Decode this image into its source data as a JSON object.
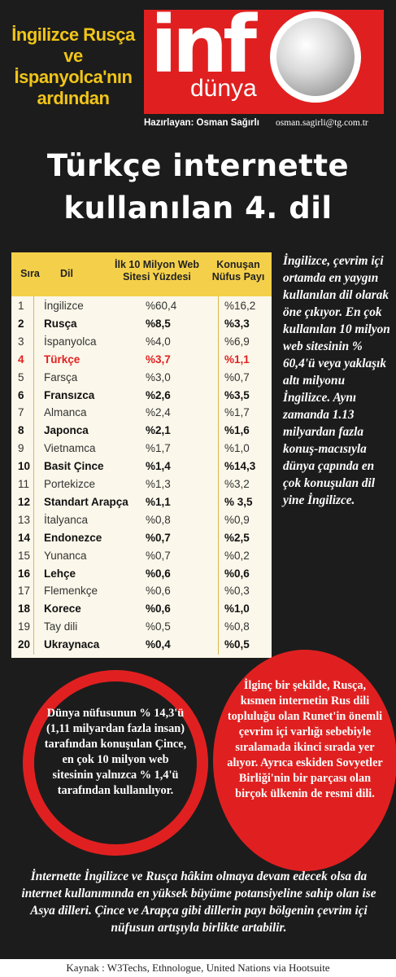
{
  "header": {
    "tagline": "İngilizce Rusça ve İspanyolca'nın ardından",
    "logo_info": "inf",
    "logo_dunya": "dünya",
    "byline": "Hazırlayan: Osman Sağırlı",
    "email": "osman.sagirli@tg.com.tr"
  },
  "headline": {
    "line1": "Türkçe internette",
    "line2": "kullanılan 4. dil"
  },
  "chart_data": {
    "type": "table",
    "columns": [
      "Sıra",
      "Dil",
      "İlk 10 Milyon Web Sitesi Yüzdesi",
      "Konuşan Nüfus Payı"
    ],
    "rows": [
      {
        "rank": "1",
        "lang": "İngilizce",
        "web": "%60,4",
        "pop": "%16,2",
        "style": "normal"
      },
      {
        "rank": "2",
        "lang": "Rusça",
        "web": "%8,5",
        "pop": "%3,3",
        "style": "bold"
      },
      {
        "rank": "3",
        "lang": "İspanyolca",
        "web": "%4,0",
        "pop": "%6,9",
        "style": "normal"
      },
      {
        "rank": "4",
        "lang": "Türkçe",
        "web": "%3,7",
        "pop": "%1,1",
        "style": "highlight"
      },
      {
        "rank": "5",
        "lang": "Farsça",
        "web": "%3,0",
        "pop": "%0,7",
        "style": "normal"
      },
      {
        "rank": "6",
        "lang": "Fransızca",
        "web": "%2,6",
        "pop": "%3,5",
        "style": "bold"
      },
      {
        "rank": "7",
        "lang": "Almanca",
        "web": "%2,4",
        "pop": "%1,7",
        "style": "normal"
      },
      {
        "rank": "8",
        "lang": "Japonca",
        "web": "%2,1",
        "pop": "%1,6",
        "style": "bold"
      },
      {
        "rank": "9",
        "lang": "Vietnamca",
        "web": "%1,7",
        "pop": "%1,0",
        "style": "normal"
      },
      {
        "rank": "10",
        "lang": "Basit Çince",
        "web": "%1,4",
        "pop": "%14,3",
        "style": "bold"
      },
      {
        "rank": "11",
        "lang": "Portekizce",
        "web": "%1,3",
        "pop": "%3,2",
        "style": "normal"
      },
      {
        "rank": "12",
        "lang": "Standart Arapça",
        "web": "%1,1",
        "pop": "% 3,5",
        "style": "bold"
      },
      {
        "rank": "13",
        "lang": "İtalyanca",
        "web": "%0,8",
        "pop": "%0,9",
        "style": "normal"
      },
      {
        "rank": "14",
        "lang": "Endonezce",
        "web": "%0,7",
        "pop": "%2,5",
        "style": "bold"
      },
      {
        "rank": "15",
        "lang": "Yunanca",
        "web": "%0,7",
        "pop": "%0,2",
        "style": "normal"
      },
      {
        "rank": "16",
        "lang": "Lehçe",
        "web": "%0,6",
        "pop": "%0,6",
        "style": "bold"
      },
      {
        "rank": "17",
        "lang": "Flemenkçe",
        "web": "%0,6",
        "pop": "%0,3",
        "style": "normal"
      },
      {
        "rank": "18",
        "lang": "Korece",
        "web": "%0,6",
        "pop": "%1,0",
        "style": "bold"
      },
      {
        "rank": "19",
        "lang": "Tay dili",
        "web": "%0,5",
        "pop": "%0,8",
        "style": "normal"
      },
      {
        "rank": "20",
        "lang": "Ukraynaca",
        "web": "%0,4",
        "pop": "%0,5",
        "style": "bold"
      }
    ]
  },
  "side_text": "İngilizce, çevrim içi ortamda en yaygın kullanılan dil olarak öne çıkıyor. En çok kullanılan 10 milyon web sitesinin % 60,4'ü veya yaklaşık altı milyonu İngilizce. Aynı zamanda 1.13 milyardan fazla konuş-macısıyla dünya çapında en çok konuşulan dil yine İngilizce.",
  "circle_left": "Dünya nüfusunun % 14,3'ü (1,11 milyardan fazla insan) tarafından konuşulan Çince, en çok 10 milyon web sitesinin yalnızca % 1,4'ü tarafından kullanılıyor.",
  "circle_right": "İlginç bir şekilde, Rusça, kısmen internetin Rus dili topluluğu olan Runet'in önemli çevrim içi varlığı sebebiyle sıralamada ikinci sırada yer alıyor. Ayrıca eskiden Sovyetler Birliği'nin bir parçası olan birçok ülkenin de resmi dili.",
  "bottom_text": "İnternette İngilizce ve Rusça hâkim olmaya devam edecek olsa da internet kullanımında en yüksek büyüme potansiyeline sahip olan ise Asya dilleri. Çince ve Arapça gibi dillerin payı bölgenin çevrim içi nüfusun artışıyla birlikte artabilir.",
  "source": "Kaynak : W3Techs, Ethnologue, United Nations via Hootsuite",
  "colors": {
    "accent": "#e02020",
    "table_header": "#f4d04a",
    "table_bg": "#fbf7ea",
    "tagline": "#f0c419"
  }
}
